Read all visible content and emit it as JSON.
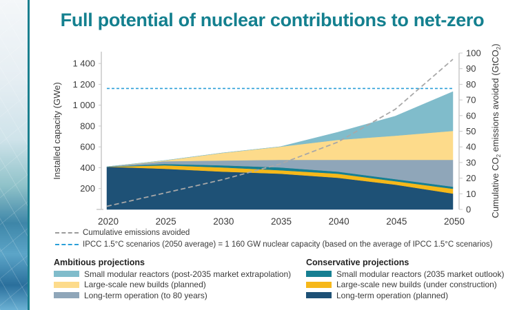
{
  "title": "Full potential of nuclear contributions to net-zero",
  "chart_data": {
    "type": "area",
    "title": "Full potential of nuclear contributions to net-zero",
    "x": [
      2020,
      2025,
      2030,
      2035,
      2040,
      2045,
      2050
    ],
    "xlabel": "",
    "ylabel": "Installed capacity (GWe)",
    "ylim": [
      0,
      1500
    ],
    "y_ticks": [
      200,
      400,
      600,
      800,
      1000,
      1200,
      1400
    ],
    "y_tick_labels": [
      "200",
      "400",
      "600",
      "800",
      "1 000",
      "1 200",
      "1 400"
    ],
    "x_tick_labels": [
      "2020",
      "2025",
      "2030",
      "2035",
      "2040",
      "2045",
      "2050"
    ],
    "y2label": "Cumulative CO2 emissions avoided (GtCO2)",
    "y2label_parts": {
      "pre": "Cumulative CO",
      "sub": "2",
      "mid": " emissions avoided (GtCO",
      "sub2": "2",
      "post": ")"
    },
    "y2lim": [
      0,
      100
    ],
    "y2_ticks": [
      0,
      10,
      20,
      30,
      40,
      50,
      60,
      70,
      80,
      90,
      100
    ],
    "stack_order_bottom_to_top": [
      "Long-term operation (planned)",
      "Large-scale new builds (under construction)",
      "Small modular reactors (2035 market outlook)",
      "Long-term operation (to 80 years)",
      "Large-scale new builds (planned)",
      "Small modular reactors (post-2035 market extrapolation)"
    ],
    "cumulative_tops_gwe": {
      "Long-term operation (planned)": [
        410,
        390,
        363,
        343,
        304,
        238,
        152
      ],
      "Large-scale new builds (under construction)": [
        410,
        423,
        403,
        376,
        343,
        271,
        198
      ],
      "Small modular reactors (2035 market outlook)": [
        410,
        436,
        423,
        403,
        363,
        291,
        218
      ],
      "Long-term operation (to 80 years)": [
        410,
        462,
        469,
        476,
        476,
        476,
        476
      ],
      "Large-scale new builds (planned)": [
        410,
        469,
        542,
        601,
        667,
        707,
        753
      ],
      "Small modular reactors (post-2035 market extrapolation)": [
        410,
        469,
        542,
        601,
        740,
        895,
        1130
      ]
    },
    "series": [
      {
        "name": "Long-term operation (planned)",
        "group": "Conservative projections",
        "color": "#1e5176",
        "values": [
          410,
          390,
          363,
          343,
          304,
          238,
          152
        ]
      },
      {
        "name": "Large-scale new builds (under construction)",
        "group": "Conservative projections",
        "color": "#f6b81a",
        "values": [
          0,
          33,
          40,
          33,
          39,
          33,
          46
        ]
      },
      {
        "name": "Small modular reactors (2035 market outlook)",
        "group": "Conservative projections",
        "color": "#167f92",
        "values": [
          0,
          13,
          20,
          27,
          20,
          20,
          20
        ]
      },
      {
        "name": "Long-term operation (to 80 years)",
        "group": "Ambitious projections",
        "color": "#8fa6b9",
        "values": [
          0,
          26,
          46,
          73,
          113,
          185,
          258
        ]
      },
      {
        "name": "Large-scale new builds (planned)",
        "group": "Ambitious projections",
        "color": "#fddb8b",
        "values": [
          0,
          7,
          73,
          125,
          191,
          231,
          277
        ]
      },
      {
        "name": "Small modular reactors (post-2035 market extrapolation)",
        "group": "Ambitious projections",
        "color": "#80bccb",
        "values": [
          0,
          0,
          0,
          0,
          73,
          188,
          377
        ]
      }
    ],
    "lines": [
      {
        "name": "Cumulative emissions avoided",
        "axis": "right",
        "style": "dashed",
        "color": "#9a9a9a",
        "values": [
          2,
          10.5,
          19,
          29,
          43,
          64,
          96
        ]
      },
      {
        "name": "IPCC 1.5°C scenarios (2050 average)",
        "axis": "left",
        "style": "dashed",
        "color": "#2a9fd8",
        "value": 1160
      }
    ],
    "grid": false,
    "legend_position": "bottom"
  },
  "legend": {
    "lines": [
      {
        "label": "Cumulative emissions avoided",
        "color": "#9a9a9a"
      },
      {
        "label": "IPCC 1.5°C scenarios (2050 average) = 1 160 GW nuclear capacity (based on the average of IPCC 1.5°C scenarios)",
        "color": "#2a9fd8"
      }
    ],
    "ambitious": {
      "heading": "Ambitious projections",
      "items": [
        {
          "label": "Small modular reactors (post-2035 market extrapolation)",
          "color": "#80bccb"
        },
        {
          "label": "Large-scale new builds (planned)",
          "color": "#fddb8b"
        },
        {
          "label": "Long-term operation (to 80 years)",
          "color": "#8fa6b9"
        }
      ]
    },
    "conservative": {
      "heading": "Conservative projections",
      "items": [
        {
          "label": "Small modular reactors (2035 market outlook)",
          "color": "#167f92"
        },
        {
          "label": "Large-scale new builds (under construction)",
          "color": "#f6b81a"
        },
        {
          "label": "Long-term operation (planned)",
          "color": "#1e5176"
        }
      ]
    }
  },
  "colors": {
    "title": "#14808f",
    "accent_rule": "#1a7f8e"
  }
}
